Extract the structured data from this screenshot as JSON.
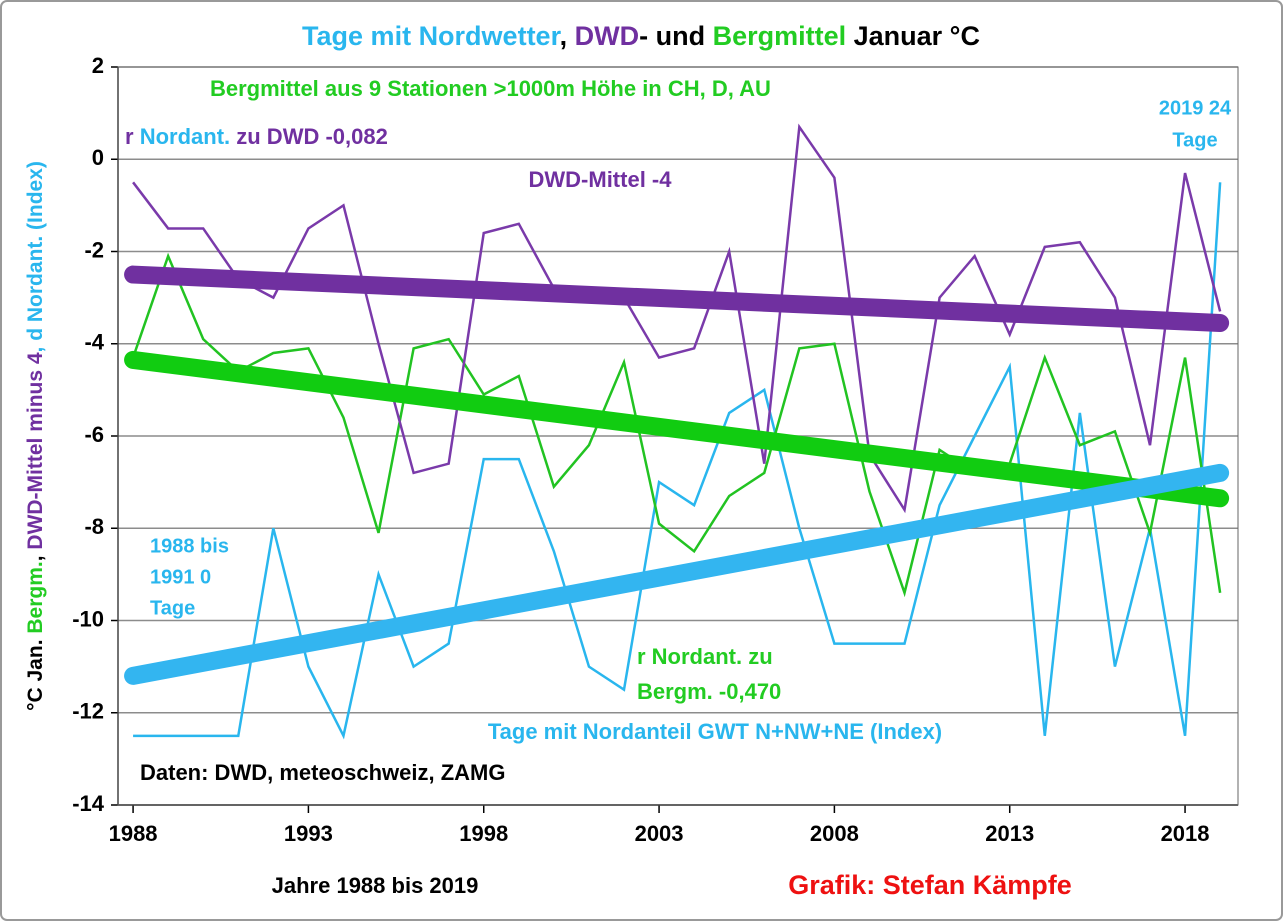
{
  "chart_data": {
    "type": "line",
    "title_parts": [
      {
        "text": "Tage mit Nordwetter",
        "color": "#29b6ee"
      },
      {
        "text": ", ",
        "color": "#000000"
      },
      {
        "text": "DWD",
        "color": "#7030a0"
      },
      {
        "text": "- und ",
        "color": "#000000"
      },
      {
        "text": "Bergmittel",
        "color": "#22cc22"
      },
      {
        "text": " Januar °C",
        "color": "#000000"
      }
    ],
    "ylabel_parts": [
      {
        "text": "°C Jan. ",
        "color": "#000000"
      },
      {
        "text": "Bergm.",
        "color": "#22cc22"
      },
      {
        "text": ", ",
        "color": "#000000"
      },
      {
        "text": "DWD-Mittel minus 4",
        "color": "#7030a0"
      },
      {
        "text": ", d Nordant. (Index)",
        "color": "#29b6ee"
      }
    ],
    "xlabel": "Jahre 1988 bis 2019",
    "credit": "Grafik: Stefan Kämpfe",
    "x": [
      1988,
      1989,
      1990,
      1991,
      1992,
      1993,
      1994,
      1995,
      1996,
      1997,
      1998,
      1999,
      2000,
      2001,
      2002,
      2003,
      2004,
      2005,
      2006,
      2007,
      2008,
      2009,
      2010,
      2011,
      2012,
      2013,
      2014,
      2015,
      2016,
      2017,
      2018,
      2019
    ],
    "series": [
      {
        "color": "#29b6ee",
        "values": [
          -12.5,
          -12.5,
          -12.5,
          -12.5,
          -8.0,
          -11.0,
          -12.5,
          -9.0,
          -11.0,
          -10.5,
          -6.5,
          -6.5,
          -8.5,
          -11.0,
          -11.5,
          -7.0,
          -7.5,
          -5.5,
          -5.0,
          -8.0,
          -10.5,
          -10.5,
          -10.5,
          -7.5,
          -6.0,
          -4.5,
          -12.5,
          -5.5,
          -11.0,
          -8.0,
          -12.5,
          -0.5
        ]
      },
      {
        "color": "#22c322",
        "values": [
          -4.3,
          -2.1,
          -3.9,
          -4.6,
          -4.2,
          -4.1,
          -5.6,
          -8.1,
          -4.1,
          -3.9,
          -5.1,
          -4.7,
          -7.1,
          -6.2,
          -4.4,
          -7.9,
          -8.5,
          -7.3,
          -6.8,
          -4.1,
          -4.0,
          -7.2,
          -9.4,
          -6.3,
          -6.8,
          -6.6,
          -4.3,
          -6.2,
          -5.9,
          -8.1,
          -4.3,
          -9.4
        ]
      },
      {
        "color": "#7a3aaa",
        "values": [
          -0.5,
          -1.5,
          -1.5,
          -2.6,
          -3.0,
          -1.5,
          -1.0,
          -4.0,
          -6.8,
          -6.6,
          -1.6,
          -1.4,
          -2.8,
          -2.9,
          -3.0,
          -4.3,
          -4.1,
          -2.0,
          -6.6,
          0.7,
          -0.4,
          -6.4,
          -7.6,
          -3.0,
          -2.1,
          -3.8,
          -1.9,
          -1.8,
          -3.0,
          -6.2,
          -0.3,
          -3.3
        ]
      }
    ],
    "trends": [
      {
        "color": "#7030a0",
        "x": [
          1988,
          2019
        ],
        "values": [
          -2.5,
          -3.55
        ]
      },
      {
        "color": "#11cc11",
        "x": [
          1988,
          2019
        ],
        "values": [
          -4.35,
          -7.35
        ]
      },
      {
        "color": "#33b5f0",
        "x": [
          1988,
          2019
        ],
        "values": [
          -11.2,
          -6.8
        ]
      }
    ],
    "xlim": [
      1987.57,
      2019.51
    ],
    "ylim": [
      -14,
      2
    ],
    "xticks": [
      1988,
      1993,
      1998,
      2003,
      2008,
      2013,
      2018
    ],
    "yticks": [
      -14,
      -12,
      -10,
      -8,
      -6,
      -4,
      -2,
      0,
      2
    ],
    "grid": true,
    "annotations": [
      {
        "color": "#22cc22",
        "lines": [
          "Bergmittel aus 9 Stationen >1000m Höhe in CH, D, AU"
        ]
      },
      {
        "parts": [
          {
            "text": "r ",
            "color": "#7030a0"
          },
          {
            "text": "Nordant.",
            "color": "#29b6ee"
          },
          {
            "text": " zu DWD -0,082",
            "color": "#7030a0"
          }
        ]
      },
      {
        "color": "#7030a0",
        "lines": [
          "DWD-Mittel -4"
        ]
      },
      {
        "color": "#29b6ee",
        "lines": [
          "2019 24",
          "Tage"
        ]
      },
      {
        "color": "#29b6ee",
        "lines": [
          "1988 bis",
          "1991 0",
          "Tage"
        ]
      },
      {
        "color": "#22cc22",
        "lines": [
          "r Nordant. zu",
          "Bergm. -0,470"
        ]
      },
      {
        "color": "#29b6ee",
        "lines": [
          "Tage mit Nordanteil GWT N+NW+NE (Index)"
        ]
      },
      {
        "color": "#000000",
        "lines": [
          "Daten: DWD, meteoschweiz, ZAMG"
        ]
      }
    ]
  }
}
